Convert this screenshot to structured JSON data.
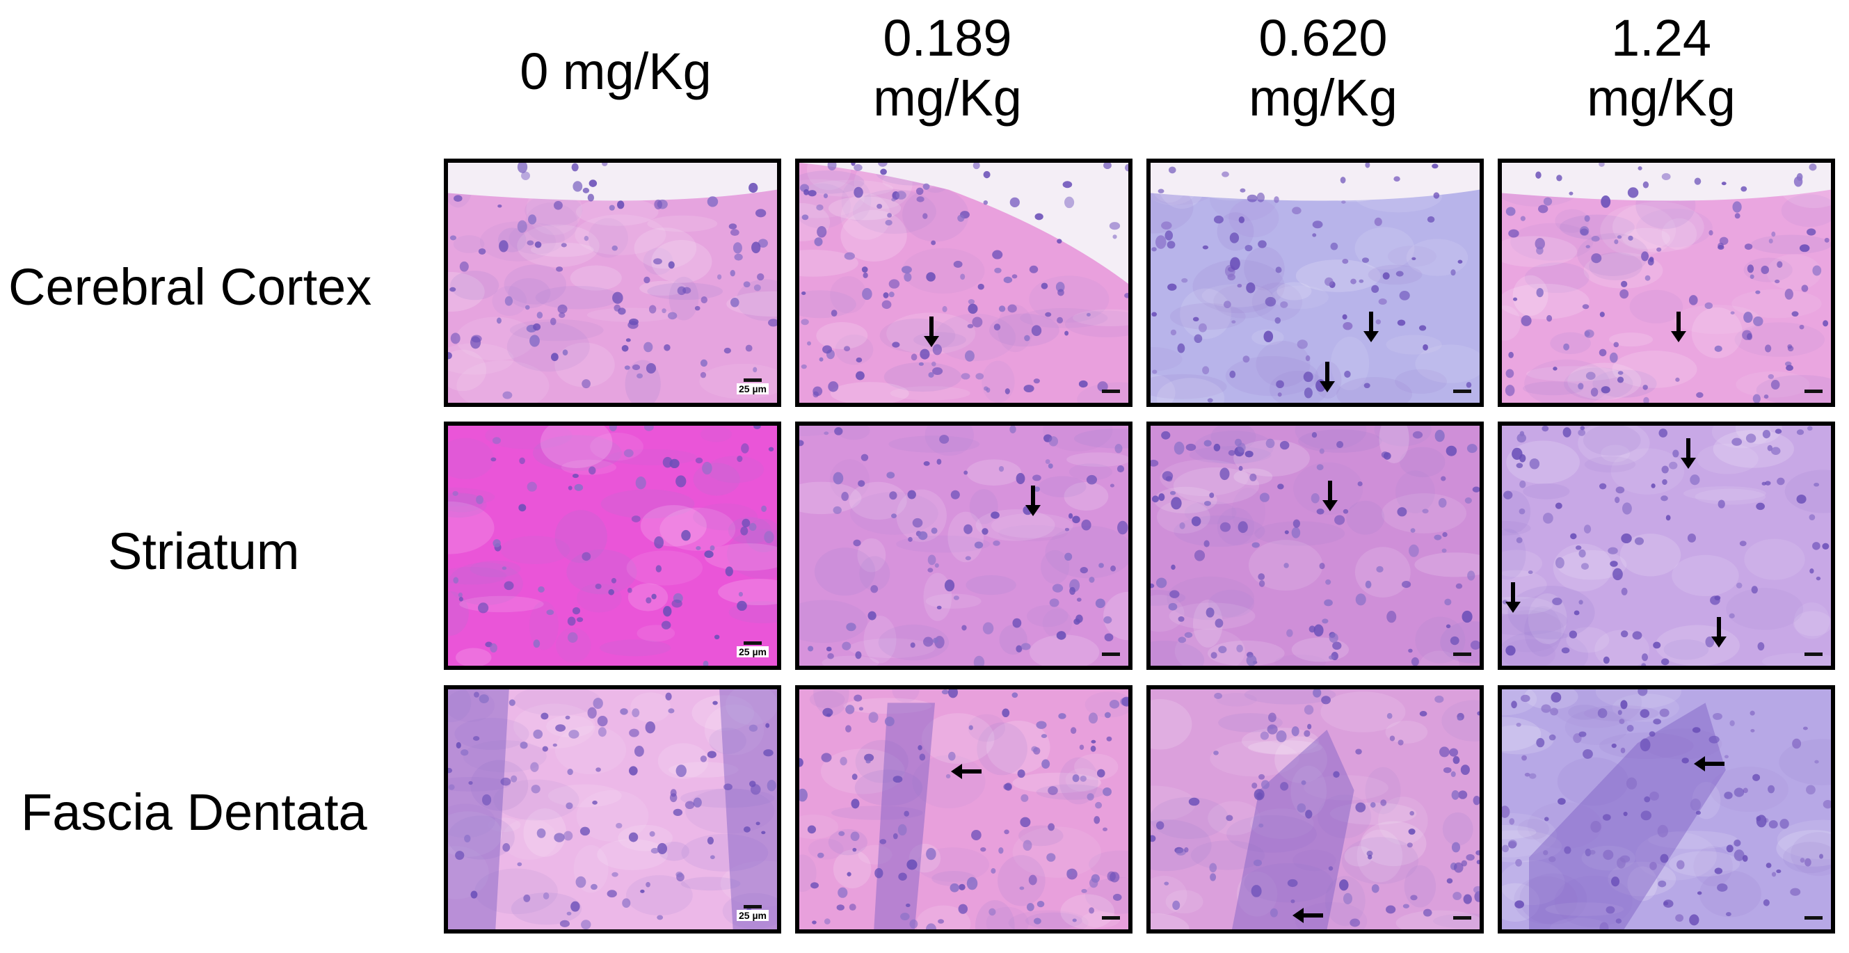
{
  "column_headers": [
    "0 mg/Kg",
    "0.189 mg/Kg",
    "0.620 mg/Kg",
    "1.24 mg/Kg"
  ],
  "column_header_lines": [
    [
      "0 mg/Kg"
    ],
    [
      "0.189",
      "mg/Kg"
    ],
    [
      "0.620",
      "mg/Kg"
    ],
    [
      "1.24",
      "mg/Kg"
    ]
  ],
  "row_labels": [
    "Cerebral Cortex",
    "Striatum",
    "Fascia Dentata"
  ],
  "scale_bar_label": "25 µm",
  "colors": {
    "tissue_pink": "#e9a8e0",
    "tissue_hot_pink": "#e85ad8",
    "tissue_blue": "#a8b0e8",
    "nucleus_purple": "#6a4fb8",
    "border": "#000000"
  }
}
